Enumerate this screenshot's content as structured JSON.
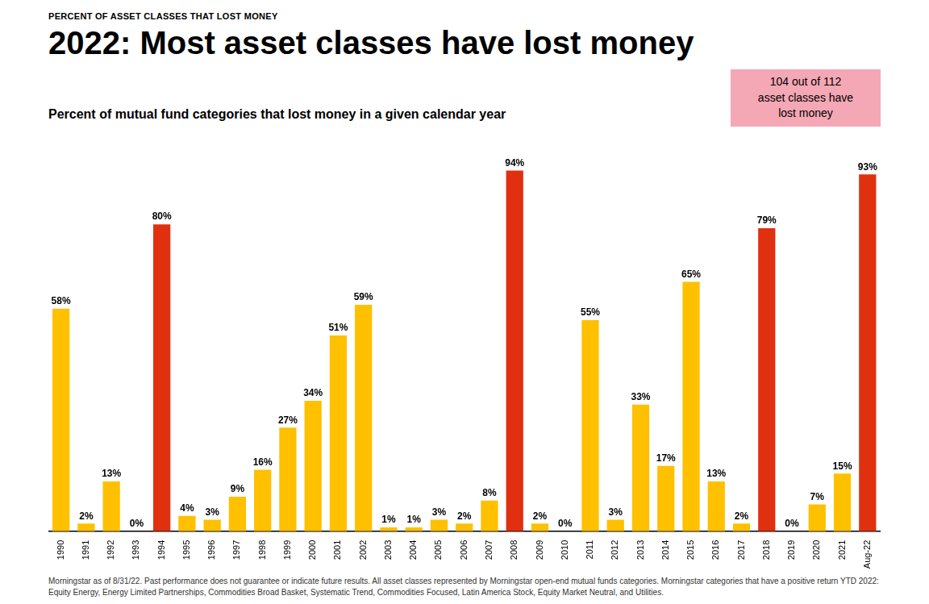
{
  "chart_data": {
    "type": "bar",
    "supra_title": "PERCENT OF ASSET CLASSES THAT LOST MONEY",
    "title": "2022: Most asset classes have lost money",
    "subtitle": "Percent of mutual fund categories that lost money in a given calendar year",
    "annotations": [
      "104 out of 112",
      "asset classes have",
      "lost money"
    ],
    "footnote": "Morningstar as of 8/31/22. Past performance does not guarantee or indicate future results. All asset classes represented by Morningstar open-end mutual funds categories. Morningstar categories that have a positive return YTD 2022: Equity Energy, Energy Limited Partnerships, Commodities Broad Basket, Systematic Trend, Commodities Focused, Latin America Stock, Equity Market Neutral, and Utilities.",
    "categories": [
      "1990",
      "1991",
      "1992",
      "1993",
      "1994",
      "1995",
      "1996",
      "1997",
      "1998",
      "1999",
      "2000",
      "2001",
      "2002",
      "2003",
      "2004",
      "2005",
      "2006",
      "2007",
      "2008",
      "2009",
      "2010",
      "2011",
      "2012",
      "2013",
      "2014",
      "2015",
      "2016",
      "2017",
      "2018",
      "2019",
      "2020",
      "2021",
      "Aug-22"
    ],
    "values": [
      58,
      2,
      13,
      0,
      80,
      4,
      3,
      9,
      16,
      27,
      34,
      51,
      59,
      1,
      1,
      3,
      2,
      8,
      94,
      2,
      0,
      55,
      3,
      33,
      17,
      65,
      13,
      2,
      79,
      0,
      7,
      15,
      93
    ],
    "value_labels": [
      "58%",
      "2%",
      "13%",
      "0%",
      "80%",
      "4%",
      "3%",
      "9%",
      "16%",
      "27%",
      "34%",
      "51%",
      "59%",
      "1%",
      "1%",
      "3%",
      "2%",
      "8%",
      "94%",
      "2%",
      "0%",
      "55%",
      "3%",
      "33%",
      "17%",
      "65%",
      "13%",
      "2%",
      "79%",
      "0%",
      "7%",
      "15%",
      "93%"
    ],
    "colors": [
      "#FFC000",
      "#FFC000",
      "#FFC000",
      "#FFC000",
      "#E03010",
      "#FFC000",
      "#FFC000",
      "#FFC000",
      "#FFC000",
      "#FFC000",
      "#FFC000",
      "#FFC000",
      "#FFC000",
      "#FFC000",
      "#FFC000",
      "#FFC000",
      "#FFC000",
      "#FFC000",
      "#E03010",
      "#FFC000",
      "#FFC000",
      "#FFC000",
      "#FFC000",
      "#FFC000",
      "#FFC000",
      "#FFC000",
      "#FFC000",
      "#FFC000",
      "#E03010",
      "#FFC000",
      "#FFC000",
      "#FFC000",
      "#E03010"
    ],
    "ylim": [
      0,
      100
    ],
    "data_labels": true,
    "tick_labels": "x",
    "grid": false
  }
}
